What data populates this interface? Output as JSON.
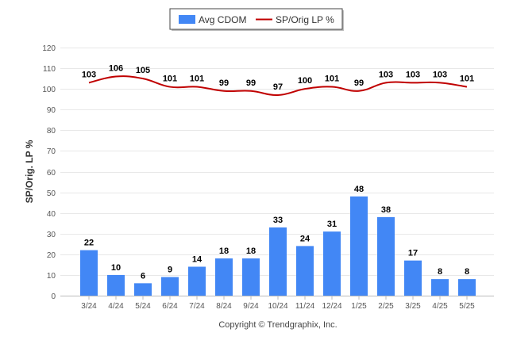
{
  "chart_data": {
    "type": "bar",
    "categories": [
      "3/24",
      "4/24",
      "5/24",
      "6/24",
      "7/24",
      "8/24",
      "9/24",
      "10/24",
      "11/24",
      "12/24",
      "1/25",
      "2/25",
      "3/25",
      "4/25",
      "5/25"
    ],
    "series": [
      {
        "name": "Avg CDOM",
        "type": "bar",
        "color": "#4287f5",
        "values": [
          22,
          10,
          6,
          9,
          14,
          18,
          18,
          33,
          24,
          31,
          48,
          38,
          17,
          8,
          8
        ]
      },
      {
        "name": "SP/Orig LP %",
        "type": "line",
        "color": "#c00000",
        "values": [
          103,
          106,
          105,
          101,
          101,
          99,
          99,
          97,
          100,
          101,
          99,
          103,
          103,
          103,
          101
        ]
      }
    ],
    "ylabel": "SP/Orig. LP %",
    "ylim": [
      0,
      120
    ],
    "yticks": [
      0,
      10,
      20,
      30,
      40,
      50,
      60,
      70,
      80,
      90,
      100,
      110,
      120
    ],
    "grid": true,
    "legend_position": "top-center"
  },
  "footer": {
    "copyright": "Copyright © Trendgraphix, Inc."
  }
}
